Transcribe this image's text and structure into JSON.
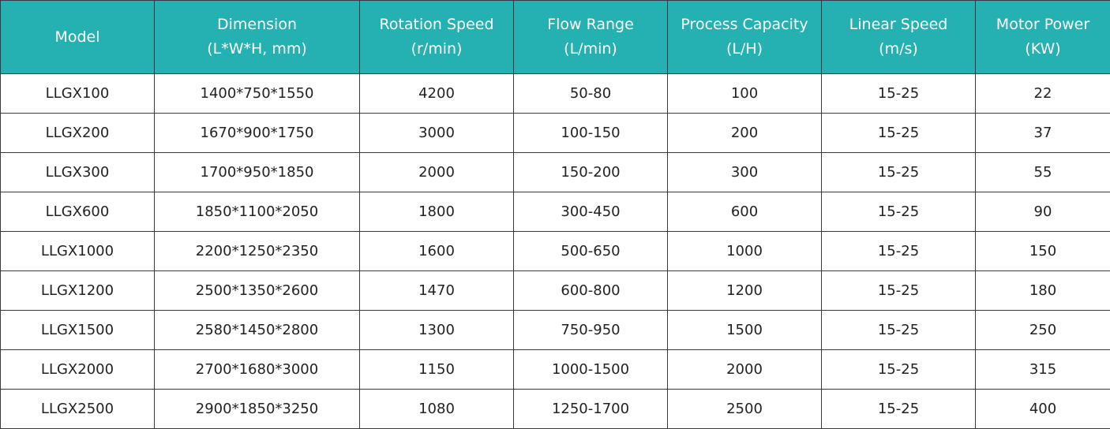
{
  "table": {
    "columns": [
      {
        "line1": "Model",
        "line2": ""
      },
      {
        "line1": "Dimension",
        "line2": "(L*W*H, mm)"
      },
      {
        "line1": "Rotation Speed",
        "line2": "(r/min)"
      },
      {
        "line1": "Flow Range",
        "line2": "(L/min)"
      },
      {
        "line1": "Process Capacity",
        "line2": "(L/H)"
      },
      {
        "line1": "Linear Speed",
        "line2": "(m/s)"
      },
      {
        "line1": "Motor Power",
        "line2": "(KW)"
      }
    ],
    "rows": [
      [
        "LLGX100",
        "1400*750*1550",
        "4200",
        "50-80",
        "100",
        "15-25",
        "22"
      ],
      [
        "LLGX200",
        "1670*900*1750",
        "3000",
        "100-150",
        "200",
        "15-25",
        "37"
      ],
      [
        "LLGX300",
        "1700*950*1850",
        "2000",
        "150-200",
        "300",
        "15-25",
        "55"
      ],
      [
        "LLGX600",
        "1850*1100*2050",
        "1800",
        "300-450",
        "600",
        "15-25",
        "90"
      ],
      [
        "LLGX1000",
        "2200*1250*2350",
        "1600",
        "500-650",
        "1000",
        "15-25",
        "150"
      ],
      [
        "LLGX1200",
        "2500*1350*2600",
        "1470",
        "600-800",
        "1200",
        "15-25",
        "180"
      ],
      [
        "LLGX1500",
        "2580*1450*2800",
        "1300",
        "750-950",
        "1500",
        "15-25",
        "250"
      ],
      [
        "LLGX2000",
        "2700*1680*3000",
        "1150",
        "1000-1500",
        "2000",
        "15-25",
        "315"
      ],
      [
        "LLGX2500",
        "2900*1850*3250",
        "1080",
        "1250-1700",
        "2500",
        "15-25",
        "400"
      ]
    ]
  },
  "colors": {
    "header_bg": "#25b0b2",
    "header_text": "#ffffff",
    "border": "#3a3a3a"
  }
}
